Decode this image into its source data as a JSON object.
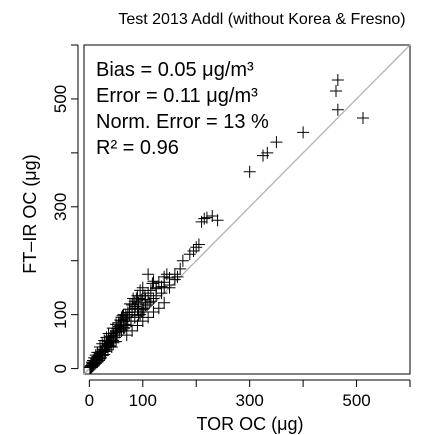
{
  "chart_data": {
    "type": "scatter",
    "title": "Test 2013 Addl (without Korea & Fresno)",
    "xlabel": "TOR OC (μg)",
    "ylabel": "FT–IR OC (μg)",
    "xlim": [
      -10,
      600
    ],
    "ylim": [
      -10,
      600
    ],
    "x_ticks": [
      0,
      100,
      300,
      500
    ],
    "y_ticks": [
      0,
      100,
      300,
      500
    ],
    "x_minor_ticks": [
      200,
      400,
      600
    ],
    "y_minor_ticks": [
      200,
      400
    ],
    "grid": false,
    "marker": "+",
    "reference_line": "1:1",
    "reference_line_color": "#b3b3b3",
    "stats": [
      "Bias = 0.05 μg/m³",
      "Error = 0.11 μg/m³",
      "Norm. Error = 13 %",
      "R² = 0.96"
    ],
    "legend_marker_count": 2,
    "points": [
      [
        465,
        535
      ],
      [
        465,
        480
      ],
      [
        400,
        438
      ],
      [
        350,
        420
      ],
      [
        333,
        400
      ],
      [
        325,
        395
      ],
      [
        300,
        365
      ],
      [
        240,
        275
      ],
      [
        230,
        283
      ],
      [
        220,
        280
      ],
      [
        215,
        278
      ],
      [
        210,
        272
      ],
      [
        205,
        230
      ],
      [
        200,
        225
      ],
      [
        195,
        218
      ],
      [
        188,
        212
      ],
      [
        175,
        200
      ],
      [
        160,
        175
      ],
      [
        150,
        168
      ],
      [
        140,
        160
      ],
      [
        135,
        152
      ],
      [
        125,
        148
      ],
      [
        120,
        162
      ],
      [
        118,
        158
      ],
      [
        110,
        175
      ],
      [
        100,
        150
      ],
      [
        95,
        145
      ],
      [
        88,
        130
      ],
      [
        85,
        125
      ],
      [
        80,
        118
      ],
      [
        75,
        110
      ],
      [
        72,
        104
      ],
      [
        70,
        95
      ],
      [
        68,
        100
      ],
      [
        65,
        92
      ],
      [
        60,
        88
      ],
      [
        58,
        80
      ],
      [
        55,
        78
      ],
      [
        52,
        74
      ],
      [
        50,
        70
      ],
      [
        48,
        66
      ],
      [
        45,
        62
      ],
      [
        42,
        60
      ],
      [
        40,
        55
      ],
      [
        38,
        52
      ],
      [
        35,
        50
      ],
      [
        33,
        46
      ],
      [
        30,
        42
      ],
      [
        28,
        40
      ],
      [
        25,
        36
      ],
      [
        22,
        32
      ],
      [
        20,
        28
      ],
      [
        18,
        25
      ],
      [
        15,
        22
      ],
      [
        12,
        18
      ],
      [
        10,
        15
      ],
      [
        8,
        12
      ],
      [
        6,
        10
      ],
      [
        5,
        8
      ],
      [
        3,
        5
      ],
      [
        2,
        3
      ],
      [
        1,
        2
      ],
      [
        40,
        60
      ],
      [
        55,
        85
      ],
      [
        62,
        98
      ],
      [
        76,
        120
      ],
      [
        82,
        130
      ],
      [
        90,
        135
      ],
      [
        95,
        130
      ],
      [
        100,
        135
      ],
      [
        105,
        128
      ],
      [
        110,
        140
      ],
      [
        115,
        145
      ],
      [
        125,
        150
      ],
      [
        130,
        160
      ],
      [
        140,
        170
      ],
      [
        145,
        175
      ],
      [
        60,
        70
      ],
      [
        65,
        75
      ],
      [
        70,
        80
      ],
      [
        78,
        88
      ],
      [
        85,
        95
      ],
      [
        92,
        98
      ],
      [
        98,
        105
      ],
      [
        102,
        112
      ],
      [
        108,
        118
      ],
      [
        112,
        122
      ],
      [
        50,
        50
      ],
      [
        45,
        48
      ],
      [
        42,
        40
      ],
      [
        38,
        42
      ],
      [
        35,
        35
      ],
      [
        30,
        32
      ],
      [
        28,
        26
      ],
      [
        25,
        24
      ],
      [
        22,
        20
      ],
      [
        20,
        18
      ],
      [
        18,
        15
      ],
      [
        16,
        14
      ],
      [
        15,
        12
      ],
      [
        12,
        10
      ],
      [
        10,
        8
      ],
      [
        8,
        6
      ],
      [
        6,
        5
      ],
      [
        5,
        4
      ],
      [
        4,
        3
      ],
      [
        3,
        2
      ],
      [
        70,
        62
      ],
      [
        80,
        70
      ],
      [
        90,
        80
      ],
      [
        100,
        88
      ],
      [
        110,
        95
      ],
      [
        120,
        105
      ],
      [
        130,
        112
      ],
      [
        140,
        122
      ],
      [
        90,
        110
      ],
      [
        85,
        112
      ],
      [
        75,
        100
      ],
      [
        65,
        88
      ],
      [
        58,
        90
      ],
      [
        50,
        82
      ],
      [
        44,
        75
      ],
      [
        36,
        65
      ],
      [
        32,
        58
      ],
      [
        28,
        52
      ],
      [
        24,
        46
      ],
      [
        20,
        40
      ],
      [
        15,
        30
      ],
      [
        12,
        25
      ],
      [
        9,
        20
      ],
      [
        7,
        15
      ],
      [
        5,
        12
      ],
      [
        100,
        110
      ],
      [
        95,
        100
      ],
      [
        105,
        118
      ],
      [
        115,
        125
      ],
      [
        120,
        130
      ],
      [
        125,
        135
      ],
      [
        135,
        140
      ],
      [
        140,
        150
      ],
      [
        150,
        155
      ],
      [
        160,
        165
      ],
      [
        72,
        88
      ],
      [
        68,
        82
      ],
      [
        64,
        76
      ],
      [
        60,
        72
      ],
      [
        56,
        68
      ],
      [
        52,
        62
      ],
      [
        48,
        58
      ],
      [
        44,
        52
      ],
      [
        40,
        48
      ],
      [
        36,
        44
      ],
      [
        32,
        40
      ],
      [
        28,
        34
      ],
      [
        24,
        30
      ],
      [
        20,
        26
      ],
      [
        16,
        20
      ],
      [
        14,
        16
      ],
      [
        11,
        14
      ],
      [
        9,
        12
      ],
      [
        7,
        10
      ],
      [
        4,
        6
      ],
      [
        80,
        105
      ],
      [
        86,
        115
      ],
      [
        92,
        122
      ],
      [
        98,
        128
      ],
      [
        104,
        135
      ],
      [
        60,
        95
      ],
      [
        64,
        100
      ],
      [
        150,
        150
      ],
      [
        165,
        170
      ],
      [
        170,
        185
      ]
    ]
  }
}
